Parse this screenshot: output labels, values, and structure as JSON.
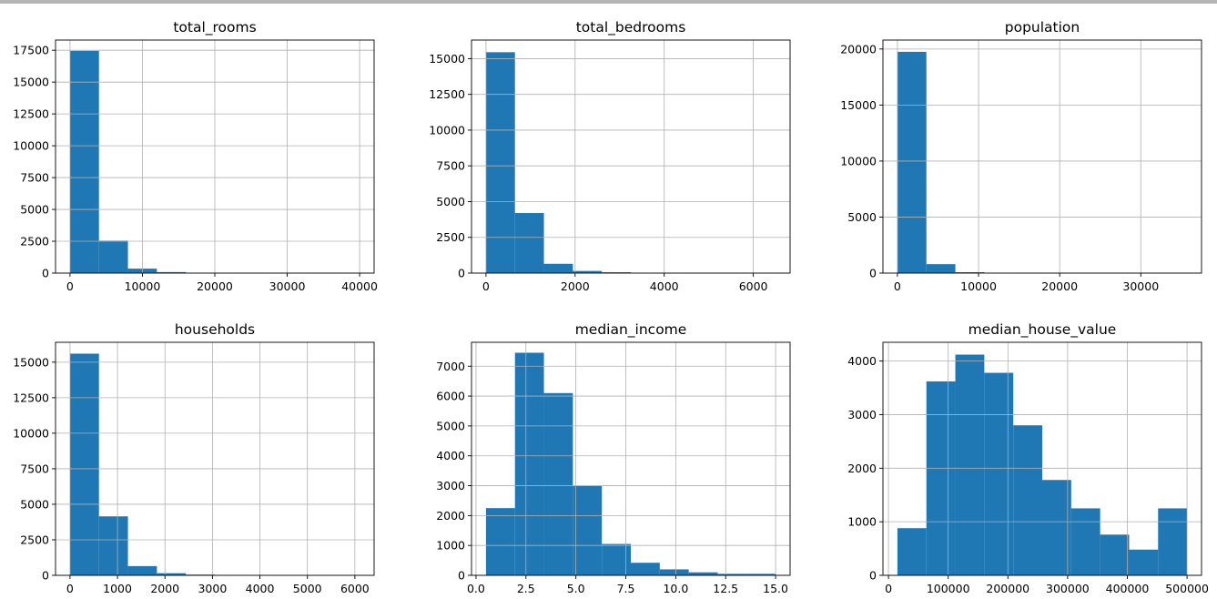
{
  "figure": {
    "bar_color": "#1f77b4",
    "grid_color": "#b0b0b0",
    "frame_color": "#000000"
  },
  "chart_data": [
    {
      "type": "bar",
      "title": "total_rooms",
      "bin_edges": [
        0,
        4000,
        8000,
        12000,
        16000,
        20000,
        24000,
        28000,
        32000,
        36000,
        40000
      ],
      "values": [
        17450,
        2550,
        350,
        80,
        20,
        10,
        5,
        3,
        2,
        1
      ],
      "xlim": [
        -2000,
        42000
      ],
      "ylim": [
        0,
        18300
      ],
      "xticks": [
        0,
        10000,
        20000,
        30000,
        40000
      ],
      "xtick_labels": [
        "0",
        "10000",
        "20000",
        "30000",
        "40000"
      ],
      "yticks": [
        0,
        2500,
        5000,
        7500,
        10000,
        12500,
        15000,
        17500
      ],
      "ytick_labels": [
        "0",
        "2500",
        "5000",
        "7500",
        "10000",
        "12500",
        "15000",
        "17500"
      ],
      "grid": true
    },
    {
      "type": "bar",
      "title": "total_bedrooms",
      "bin_edges": [
        0,
        650,
        1300,
        1950,
        2600,
        3250,
        3900,
        4550,
        5200,
        5850,
        6500
      ],
      "values": [
        15450,
        4200,
        650,
        150,
        60,
        20,
        10,
        5,
        3,
        2
      ],
      "xlim": [
        -325,
        6825
      ],
      "ylim": [
        0,
        16300
      ],
      "xticks": [
        0,
        2000,
        4000,
        6000
      ],
      "xtick_labels": [
        "0",
        "2000",
        "4000",
        "6000"
      ],
      "yticks": [
        0,
        2500,
        5000,
        7500,
        10000,
        12500,
        15000
      ],
      "ytick_labels": [
        "0",
        "2500",
        "5000",
        "7500",
        "10000",
        "12500",
        "15000"
      ],
      "grid": true
    },
    {
      "type": "bar",
      "title": "population",
      "bin_edges": [
        0,
        3570,
        7140,
        10710,
        14280,
        17850,
        21420,
        24990,
        28560,
        32130,
        35700
      ],
      "values": [
        19750,
        800,
        80,
        20,
        8,
        4,
        2,
        1,
        1,
        1
      ],
      "xlim": [
        -1785,
        37485
      ],
      "ylim": [
        0,
        20800
      ],
      "xticks": [
        0,
        10000,
        20000,
        30000
      ],
      "xtick_labels": [
        "0",
        "10000",
        "20000",
        "30000"
      ],
      "yticks": [
        0,
        5000,
        10000,
        15000,
        20000
      ],
      "ytick_labels": [
        "0",
        "5000",
        "10000",
        "15000",
        "20000"
      ],
      "grid": true
    },
    {
      "type": "bar",
      "title": "households",
      "bin_edges": [
        0,
        610,
        1220,
        1830,
        2440,
        3050,
        3660,
        4270,
        4880,
        5490,
        6100
      ],
      "values": [
        15600,
        4150,
        650,
        150,
        50,
        20,
        10,
        5,
        3,
        2
      ],
      "xlim": [
        -305,
        6405
      ],
      "ylim": [
        0,
        16400
      ],
      "xticks": [
        0,
        1000,
        2000,
        3000,
        4000,
        5000,
        6000
      ],
      "xtick_labels": [
        "0",
        "1000",
        "2000",
        "3000",
        "4000",
        "5000",
        "6000"
      ],
      "yticks": [
        0,
        2500,
        5000,
        7500,
        10000,
        12500,
        15000
      ],
      "ytick_labels": [
        "0",
        "2500",
        "5000",
        "7500",
        "10000",
        "12500",
        "15000"
      ],
      "grid": true
    },
    {
      "type": "bar",
      "title": "median_income",
      "bin_edges": [
        0.5,
        1.95,
        3.4,
        4.85,
        6.3,
        7.75,
        9.2,
        10.65,
        12.1,
        13.55,
        15.0
      ],
      "values": [
        2250,
        7450,
        6100,
        3000,
        1050,
        420,
        200,
        100,
        50,
        50
      ],
      "xlim": [
        -0.225,
        15.725
      ],
      "ylim": [
        0,
        7800
      ],
      "xticks": [
        0.0,
        2.5,
        5.0,
        7.5,
        10.0,
        12.5,
        15.0
      ],
      "xtick_labels": [
        "0.0",
        "2.5",
        "5.0",
        "7.5",
        "10.0",
        "12.5",
        "15.0"
      ],
      "yticks": [
        0,
        1000,
        2000,
        3000,
        4000,
        5000,
        6000,
        7000
      ],
      "ytick_labels": [
        "0",
        "1000",
        "2000",
        "3000",
        "4000",
        "5000",
        "6000",
        "7000"
      ],
      "grid": true
    },
    {
      "type": "bar",
      "title": "median_house_value",
      "bin_edges": [
        15000,
        63500,
        112000,
        160500,
        209000,
        257500,
        306000,
        354500,
        403000,
        451500,
        500000
      ],
      "values": [
        880,
        3620,
        4120,
        3780,
        2800,
        1780,
        1250,
        760,
        480,
        1250
      ],
      "xlim": [
        -9250,
        524250
      ],
      "ylim": [
        0,
        4350
      ],
      "xticks": [
        0,
        100000,
        200000,
        300000,
        400000,
        500000
      ],
      "xtick_labels": [
        "0",
        "100000",
        "200000",
        "300000",
        "400000",
        "500000"
      ],
      "yticks": [
        0,
        1000,
        2000,
        3000,
        4000
      ],
      "ytick_labels": [
        "0",
        "1000",
        "2000",
        "3000",
        "4000"
      ],
      "grid": true
    }
  ]
}
